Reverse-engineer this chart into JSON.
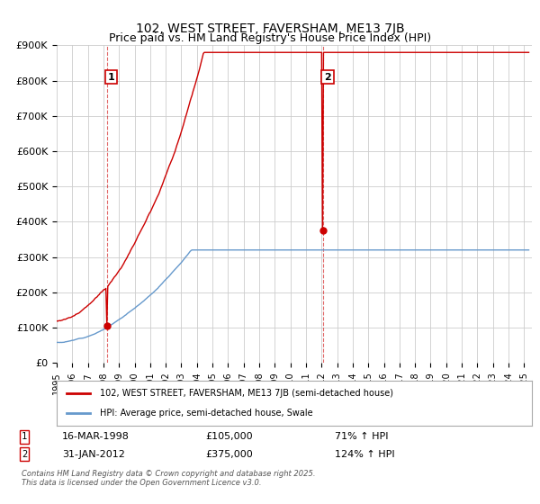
{
  "title": "102, WEST STREET, FAVERSHAM, ME13 7JB",
  "subtitle": "Price paid vs. HM Land Registry's House Price Index (HPI)",
  "ylim": [
    0,
    900000
  ],
  "yticks": [
    0,
    100000,
    200000,
    300000,
    400000,
    500000,
    600000,
    700000,
    800000,
    900000
  ],
  "ytick_labels": [
    "£0",
    "£100K",
    "£200K",
    "£300K",
    "£400K",
    "£500K",
    "£600K",
    "£700K",
    "£800K",
    "£900K"
  ],
  "xlim_start": 1995.0,
  "xlim_end": 2025.5,
  "sale1_date": 1998.21,
  "sale1_price": 105000,
  "sale1_label": "1",
  "sale1_text": "16-MAR-1998",
  "sale1_amount": "£105,000",
  "sale1_pct": "71% ↑ HPI",
  "sale2_date": 2012.08,
  "sale2_price": 375000,
  "sale2_label": "2",
  "sale2_text": "31-JAN-2012",
  "sale2_amount": "£375,000",
  "sale2_pct": "124% ↑ HPI",
  "line1_color": "#cc0000",
  "line2_color": "#6699cc",
  "grid_color": "#cccccc",
  "background_color": "#ffffff",
  "legend_line1": "102, WEST STREET, FAVERSHAM, ME13 7JB (semi-detached house)",
  "legend_line2": "HPI: Average price, semi-detached house, Swale",
  "footer": "Contains HM Land Registry data © Crown copyright and database right 2025.\nThis data is licensed under the Open Government Licence v3.0."
}
